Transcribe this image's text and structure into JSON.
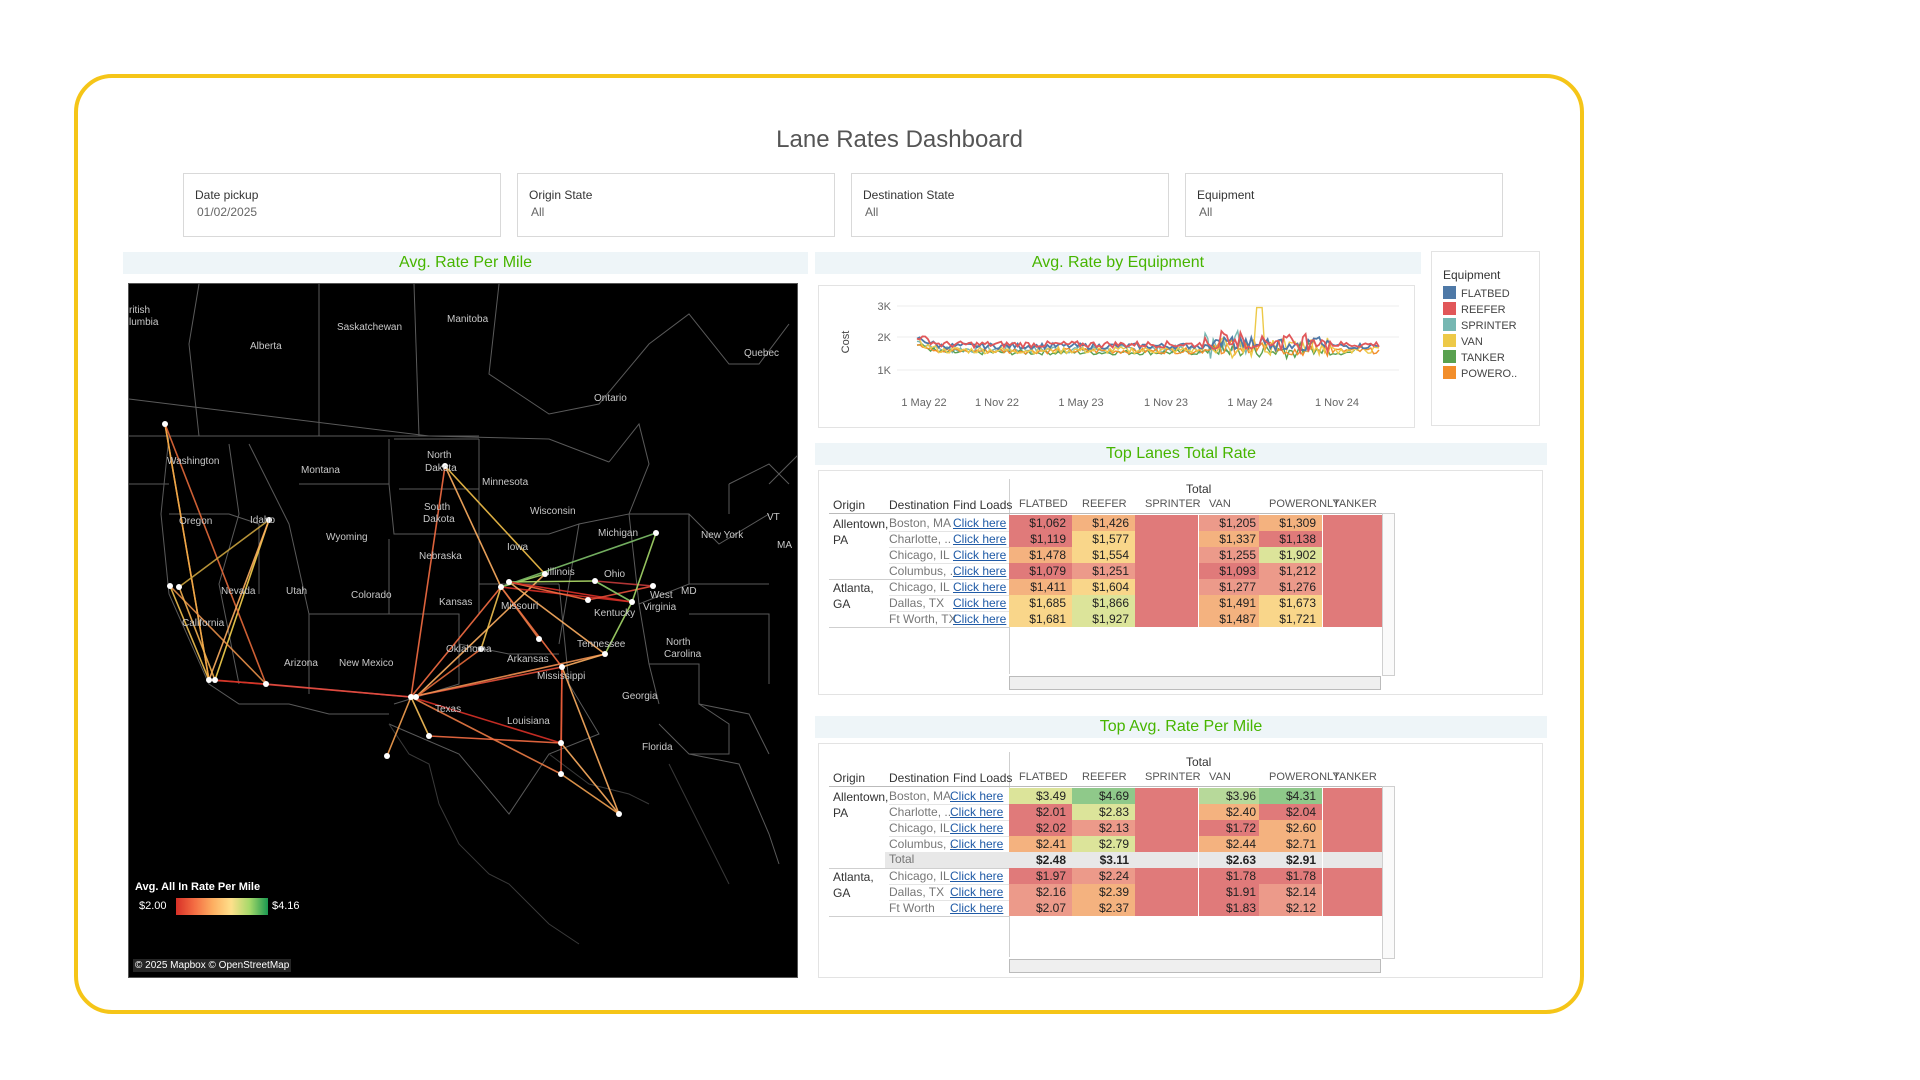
{
  "title": "Lane Rates Dashboard",
  "filters": [
    {
      "label": "Date pickup",
      "value": "01/02/2025"
    },
    {
      "label": "Origin State",
      "value": "All"
    },
    {
      "label": "Destination State",
      "value": "All"
    },
    {
      "label": "Equipment",
      "value": "All"
    }
  ],
  "sections": {
    "map": "Avg. Rate Per Mile",
    "equipment": "Avg. Rate by Equipment",
    "top_lanes": "Top Lanes Total Rate",
    "top_rpm": "Top Avg. Rate Per Mile"
  },
  "map": {
    "labels": {
      "british_columbia_1": "ritish",
      "british_columbia_2": "lumbia",
      "alberta": "Alberta",
      "saskatchewan": "Saskatchewan",
      "manitoba": "Manitoba",
      "quebec": "Quebec",
      "ontario": "Ontario",
      "washington": "Washington",
      "oregon": "Oregon",
      "idaho": "Idaho",
      "montana": "Montana",
      "north_dakota_1": "North",
      "north_dakota_2": "Dakota",
      "south_dakota_1": "South",
      "south_dakota_2": "Dakota",
      "wyoming": "Wyoming",
      "minnesota": "Minnesota",
      "wisconsin": "Wisconsin",
      "michigan": "Michigan",
      "new_york": "New York",
      "vt": "VT",
      "ma": "MA",
      "iowa": "Iowa",
      "nebraska": "Nebraska",
      "nevada": "Nevada",
      "utah": "Utah",
      "colorado": "Colorado",
      "kansas": "Kansas",
      "missouri": "Missouri",
      "illinois": "Illinois",
      "ohio": "Ohio",
      "kentucky": "Kentucky",
      "west_virginia_1": "West",
      "west_virginia_2": "Virginia",
      "md": "MD",
      "california": "California",
      "arizona": "Arizona",
      "new_mexico": "New Mexico",
      "oklahoma": "Oklahoma",
      "arkansas": "Arkansas",
      "tennessee": "Tennessee",
      "north_carolina_1": "North",
      "north_carolina_2": "Carolina",
      "mississippi": "Mississippi",
      "texas": "Texas",
      "louisiana": "Louisiana",
      "georgia": "Georgia",
      "florida": "Florida"
    },
    "legend_title": "Avg. All In Rate Per Mile",
    "legend_min": "$2.00",
    "legend_max": "$4.16",
    "credit": "© 2025 Mapbox © OpenStreetMap"
  },
  "equipment_chart": {
    "y_axis_label": "Cost",
    "y_ticks": [
      "3K",
      "2K",
      "1K"
    ],
    "x_ticks": [
      "1 May 22",
      "1 Nov 22",
      "1 May 23",
      "1 Nov 23",
      "1 May 24",
      "1 Nov 24"
    ],
    "legend_title": "Equipment",
    "legend": [
      {
        "name": "FLATBED",
        "color": "#4e79a7"
      },
      {
        "name": "REEFER",
        "color": "#e15759"
      },
      {
        "name": "SPRINTER",
        "color": "#76b7b2"
      },
      {
        "name": "VAN",
        "color": "#edc948"
      },
      {
        "name": "TANKER",
        "color": "#59a14f"
      },
      {
        "name": "POWERO..",
        "color": "#f28e2b"
      }
    ]
  },
  "top_lanes": {
    "total_label": "Total",
    "row_headers": [
      "Origin",
      "Destination",
      "Find Loads"
    ],
    "columns": [
      "FLATBED",
      "REEFER",
      "SPRINTER",
      "VAN",
      "POWERONLY",
      "TANKER"
    ],
    "groups": [
      {
        "origin_1": "Allentown,",
        "origin_2": "PA",
        "rows": [
          {
            "dest": "Boston, MA",
            "link": "Click here",
            "values": [
              "$1,062",
              "$1,426",
              "",
              "$1,205",
              "$1,309",
              ""
            ]
          },
          {
            "dest": "Charlotte, ..",
            "link": "Click here",
            "values": [
              "$1,119",
              "$1,577",
              "",
              "$1,337",
              "$1,138",
              ""
            ]
          },
          {
            "dest": "Chicago, IL",
            "link": "Click here",
            "values": [
              "$1,478",
              "$1,554",
              "",
              "$1,255",
              "$1,902",
              ""
            ]
          },
          {
            "dest": "Columbus, ..",
            "link": "Click here",
            "values": [
              "$1,079",
              "$1,251",
              "",
              "$1,093",
              "$1,212",
              ""
            ]
          }
        ]
      },
      {
        "origin_1": "Atlanta,",
        "origin_2": "GA",
        "rows": [
          {
            "dest": "Chicago, IL",
            "link": "Click here",
            "values": [
              "$1,411",
              "$1,604",
              "",
              "$1,277",
              "$1,276",
              ""
            ]
          },
          {
            "dest": "Dallas, TX",
            "link": "Click here",
            "values": [
              "$1,685",
              "$1,866",
              "",
              "$1,491",
              "$1,673",
              ""
            ]
          },
          {
            "dest": "Ft Worth, TX",
            "link": "Click here",
            "values": [
              "$1,681",
              "$1,927",
              "",
              "$1,487",
              "$1,721",
              ""
            ]
          }
        ]
      }
    ]
  },
  "top_rpm": {
    "total_label": "Total",
    "row_headers": [
      "Origin",
      "Destination",
      "Find Loads"
    ],
    "columns": [
      "FLATBED",
      "REEFER",
      "SPRINTER",
      "VAN",
      "POWERONLY",
      "TANKER"
    ],
    "groups": [
      {
        "origin_1": "Allentown,",
        "origin_2": "PA",
        "rows": [
          {
            "dest": "Boston, MA",
            "link": "Click here",
            "values": [
              "$3.49",
              "$4.69",
              "",
              "$3.96",
              "$4.31",
              ""
            ]
          },
          {
            "dest": "Charlotte, ..",
            "link": "Click here",
            "values": [
              "$2.01",
              "$2.83",
              "",
              "$2.40",
              "$2.04",
              ""
            ]
          },
          {
            "dest": "Chicago, IL",
            "link": "Click here",
            "values": [
              "$2.02",
              "$2.13",
              "",
              "$1.72",
              "$2.60",
              ""
            ]
          },
          {
            "dest": "Columbus, ..",
            "link": "Click here",
            "values": [
              "$2.41",
              "$2.79",
              "",
              "$2.44",
              "$2.71",
              ""
            ]
          }
        ],
        "total": {
          "label": "Total",
          "values": [
            "$2.48",
            "$3.11",
            "",
            "$2.63",
            "$2.91",
            ""
          ]
        }
      },
      {
        "origin_1": "Atlanta,",
        "origin_2": "GA",
        "rows": [
          {
            "dest": "Chicago, IL",
            "link": "Click here",
            "values": [
              "$1.97",
              "$2.24",
              "",
              "$1.78",
              "$1.78",
              ""
            ]
          },
          {
            "dest": "Dallas, TX",
            "link": "Click here",
            "values": [
              "$2.16",
              "$2.39",
              "",
              "$1.91",
              "$2.14",
              ""
            ]
          },
          {
            "dest": "Ft Worth",
            "link": "Click here",
            "values": [
              "$2.07",
              "$2.37",
              "",
              "$1.83",
              "$2.12",
              ""
            ]
          }
        ]
      }
    ]
  },
  "colors": {
    "frame": "#f5c518",
    "section_title": "#47b500",
    "red": "#e07a7a",
    "light_red": "#ec9a8a",
    "orange": "#f4b27f",
    "yellow": "#f9d68a",
    "yellow_green": "#dce49a",
    "green": "#8fc98a",
    "light_green": "#b7d99a",
    "link": "#1f5aa6"
  }
}
